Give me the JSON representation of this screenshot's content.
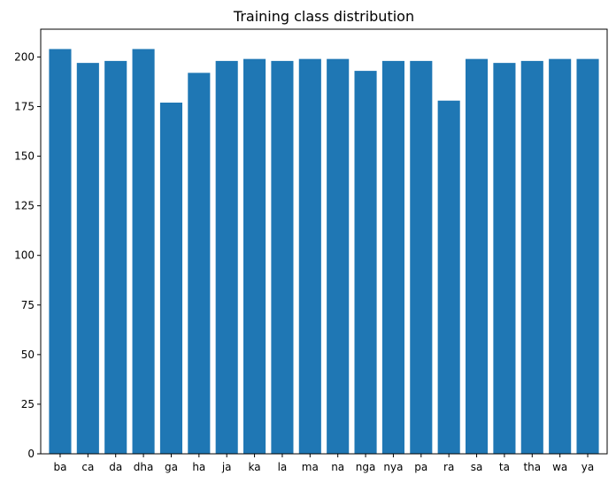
{
  "chart_data": {
    "type": "bar",
    "title": "Training class distribution",
    "xlabel": "",
    "ylabel": "",
    "categories": [
      "ba",
      "ca",
      "da",
      "dha",
      "ga",
      "ha",
      "ja",
      "ka",
      "la",
      "ma",
      "na",
      "nga",
      "nya",
      "pa",
      "ra",
      "sa",
      "ta",
      "tha",
      "wa",
      "ya"
    ],
    "values": [
      204,
      197,
      198,
      204,
      177,
      192,
      198,
      199,
      198,
      199,
      199,
      193,
      198,
      198,
      178,
      199,
      197,
      198,
      199,
      199
    ],
    "ylim": [
      0,
      214
    ],
    "yticks": [
      0,
      25,
      50,
      75,
      100,
      125,
      150,
      175,
      200
    ],
    "grid": false,
    "legend": "none",
    "colors": {
      "bar": "#1f77b4",
      "axes": "#000000",
      "background": "#ffffff"
    }
  }
}
